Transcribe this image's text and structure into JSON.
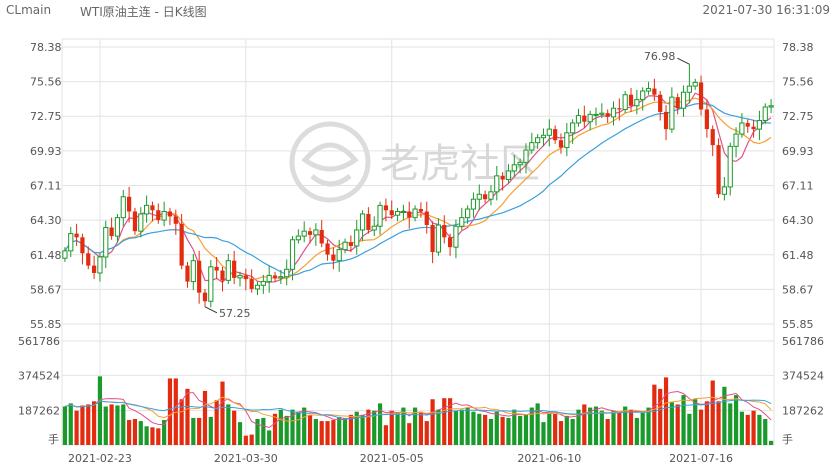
{
  "header": {
    "symbol": "CLmain",
    "title": "WTI原油主连 - 日K线图",
    "datetime": "2021-07-30 16:31:09"
  },
  "watermark": {
    "text": "老虎社区",
    "icon": "tiger-logo-icon"
  },
  "colors": {
    "up": "#1a9a2a",
    "down": "#e32b10",
    "ma5": "#e0508a",
    "ma10": "#f5a030",
    "ma20": "#3aa0e0",
    "grid": "#e3e3e3"
  },
  "chart_data": {
    "type": "candlestick",
    "price_ticks": [
      "78.38",
      "75.56",
      "72.75",
      "69.93",
      "67.11",
      "64.30",
      "61.48",
      "58.67",
      "55.85"
    ],
    "price_range": [
      55.85,
      78.38
    ],
    "volume_ticks": [
      "561786",
      "374524",
      "187262"
    ],
    "volume_max": 561786,
    "volume_unit": "手",
    "x_labels": [
      "2021-02-23",
      "2021-03-30",
      "2021-05-05",
      "2021-06-10",
      "2021-07-16"
    ],
    "annotations": [
      {
        "label": "76.98",
        "type": "max",
        "value": 76.98
      },
      {
        "label": "57.25",
        "type": "min",
        "value": 57.25
      }
    ],
    "grid": true,
    "closes": [
      61.8,
      63.2,
      62.9,
      61.6,
      60.6,
      60.0,
      61.3,
      63.7,
      63.0,
      64.5,
      66.2,
      65.0,
      63.4,
      64.8,
      65.5,
      65.1,
      64.3,
      65.0,
      64.6,
      64.0,
      60.6,
      59.3,
      61.0,
      58.4,
      57.7,
      60.5,
      60.2,
      59.4,
      61.0,
      59.6,
      59.8,
      59.5,
      58.7,
      59.0,
      59.3,
      59.8,
      59.6,
      59.7,
      60.3,
      62.7,
      63.0,
      63.4,
      63.1,
      63.5,
      62.4,
      61.5,
      61.0,
      61.9,
      62.5,
      62.2,
      63.5,
      64.8,
      63.5,
      63.8,
      65.5,
      65.1,
      64.7,
      65.0,
      65.0,
      64.5,
      65.2,
      65.0,
      63.9,
      61.7,
      63.9,
      62.9,
      62.1,
      63.8,
      64.5,
      65.2,
      66.0,
      66.4,
      66.0,
      66.6,
      67.9,
      67.6,
      68.3,
      68.8,
      69.0,
      70.0,
      70.6,
      71.0,
      71.2,
      71.7,
      70.8,
      70.2,
      71.4,
      72.2,
      72.8,
      72.3,
      72.9,
      72.9,
      73.0,
      72.7,
      73.4,
      73.3,
      74.5,
      73.6,
      74.1,
      74.8,
      75.0,
      74.5,
      73.1,
      71.7,
      74.3,
      73.4,
      74.7,
      75.2,
      75.5,
      73.3,
      71.7,
      70.4,
      66.4,
      67.0,
      70.3,
      71.3,
      72.2,
      71.9,
      71.7,
      72.4,
      73.5,
      73.6
    ],
    "volumes": [
      0.37,
      0.4,
      0.33,
      0.38,
      0.39,
      0.42,
      0.66,
      0.37,
      0.39,
      0.38,
      0.39,
      0.24,
      0.25,
      0.23,
      0.18,
      0.17,
      0.16,
      0.24,
      0.64,
      0.64,
      0.44,
      0.54,
      0.26,
      0.26,
      0.52,
      0.27,
      0.43,
      0.61,
      0.39,
      0.33,
      0.22,
      0.09,
      0.1,
      0.25,
      0.26,
      0.14,
      0.3,
      0.34,
      0.28,
      0.34,
      0.32,
      0.36,
      0.29,
      0.25,
      0.23,
      0.23,
      0.24,
      0.27,
      0.26,
      0.29,
      0.32,
      0.29,
      0.34,
      0.33,
      0.4,
      0.19,
      0.33,
      0.31,
      0.36,
      0.21,
      0.36,
      0.32,
      0.23,
      0.44,
      0.34,
      0.45,
      0.45,
      0.33,
      0.34,
      0.36,
      0.32,
      0.3,
      0.29,
      0.25,
      0.32,
      0.27,
      0.26,
      0.34,
      0.28,
      0.29,
      0.36,
      0.4,
      0.22,
      0.3,
      0.3,
      0.23,
      0.28,
      0.25,
      0.34,
      0.39,
      0.36,
      0.37,
      0.33,
      0.25,
      0.33,
      0.31,
      0.37,
      0.34,
      0.26,
      0.31,
      0.36,
      0.58,
      0.54,
      0.65,
      0.41,
      0.39,
      0.48,
      0.3,
      0.44,
      0.34,
      0.42,
      0.62,
      0.42,
      0.56,
      0.4,
      0.48,
      0.32,
      0.29,
      0.33,
      0.29,
      0.25,
      0.04
    ]
  }
}
